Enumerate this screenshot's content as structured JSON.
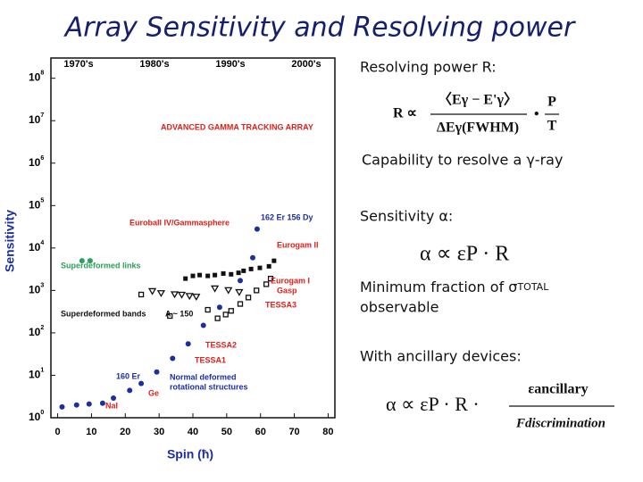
{
  "title": "Array Sensitivity and Resolving power",
  "chart_data": {
    "type": "scatter",
    "log_y": true,
    "y_label": "Sensitivity",
    "x_label": "Spin (ħ)",
    "era_labels": [
      "1970's",
      "1980's",
      "1990's",
      "2000's"
    ],
    "xlim": [
      -2,
      82
    ],
    "xticks": [
      0,
      10,
      20,
      30,
      40,
      50,
      60,
      70,
      80
    ],
    "ylim": [
      1,
      300000000
    ],
    "yticks": [
      {
        "value": 1,
        "label": "10",
        "exponent": "0"
      },
      {
        "value": 10,
        "label": "10",
        "exponent": "1"
      },
      {
        "value": 100,
        "label": "10",
        "exponent": "2"
      },
      {
        "value": 1000,
        "label": "10",
        "exponent": "3"
      },
      {
        "value": 10000,
        "label": "10",
        "exponent": "4"
      },
      {
        "value": 100000,
        "label": "10",
        "exponent": "5"
      },
      {
        "value": 1000000,
        "label": "10",
        "exponent": "6"
      },
      {
        "value": 10000000,
        "label": "10",
        "exponent": "7"
      },
      {
        "value": 100000000,
        "label": "10",
        "exponent": "8"
      }
    ],
    "series": [
      {
        "color": "#1c2fa0",
        "marker": "circle",
        "x": [
          1.3,
          5.6,
          9.3,
          13.3,
          16.5,
          21.3,
          24.7,
          29.3,
          34,
          38.6,
          43.1,
          47.9,
          54,
          57.7,
          59
        ],
        "values": [
          1.8,
          2,
          2.1,
          2.2,
          2.9,
          4.4,
          6.4,
          12,
          25,
          55,
          150,
          400,
          1700,
          5900,
          28000
        ]
      },
      {
        "color": "#2ca05a",
        "marker": "circle",
        "x": [
          7.2,
          9.6
        ],
        "values": [
          5000,
          5000
        ]
      },
      {
        "color": "#111111",
        "marker": "square",
        "x": [
          37.8,
          40,
          42,
          44.4,
          46.5,
          49,
          51.3,
          53.5,
          55,
          57.2,
          59.8,
          62.5,
          64
        ],
        "values": [
          1900,
          2200,
          2300,
          2200,
          2300,
          2500,
          2400,
          2600,
          2900,
          3200,
          3400,
          3700,
          5000
        ]
      },
      {
        "color": "#111111",
        "marker": "triangle",
        "x": [
          28,
          30.6,
          34.6,
          36.7,
          39,
          41,
          46.5,
          50.5,
          53.7
        ],
        "values": [
          950,
          850,
          800,
          780,
          730,
          700,
          1100,
          1000,
          900
        ]
      },
      {
        "color": "#111111",
        "marker": "open-square",
        "x": [
          24.7,
          33.2,
          44.4,
          47.3,
          49.7,
          51.3,
          54,
          56.4,
          58.8,
          61.7,
          63
        ],
        "values": [
          800,
          250,
          350,
          220,
          270,
          330,
          480,
          680,
          1000,
          1400,
          1900
        ]
      }
    ],
    "annotations": [
      {
        "text": "ADVANCED GAMMA TRACKING ARRAY",
        "color": "#e0201a"
      },
      {
        "text": "Euroball IV/Gammasphere",
        "color": "#e0201a"
      },
      {
        "text": "162 Er 156 Dy",
        "color": "#1c2fa0"
      },
      {
        "text": "Eurogam II",
        "color": "#e0201a"
      },
      {
        "text": "Superdeformed links",
        "color": "#2ca05a"
      },
      {
        "text": "Eurogam I",
        "color": "#e0201a"
      },
      {
        "text": "Gasp",
        "color": "#e0201a"
      },
      {
        "text": "TESSA3",
        "color": "#e0201a"
      },
      {
        "text": "Superdeformed bands",
        "color": "#111111"
      },
      {
        "text": "A ~ 150",
        "color": "#111111"
      },
      {
        "text": "TESSA2",
        "color": "#e0201a"
      },
      {
        "text": "TESSA1",
        "color": "#e0201a"
      },
      {
        "text": "160 Er",
        "color": "#1c2fa0"
      },
      {
        "text": "Normal deformed",
        "color": "#1c2fa0"
      },
      {
        "text": "rotational structures",
        "color": "#1c2fa0"
      },
      {
        "text": "Ge",
        "color": "#e0201a"
      },
      {
        "text": "NaI",
        "color": "#e0201a"
      }
    ]
  },
  "notes": {
    "resolving_power": "Resolving power R:",
    "formula_1": {
      "lhs": "R ∝",
      "numerator": "〈Eγ − E'γ〉",
      "denominator": "ΔEγ(FWHM)",
      "dot": "•",
      "top": "P",
      "bottom": "T"
    },
    "capability": "Capability to resolve a  γ-ray",
    "sensitivity": "Sensitivity  α:",
    "formula_2": "α ∝ εP · R",
    "minimum": "Minimum fraction of  σ",
    "minimum_sub": "TOTAL",
    "observable": "observable",
    "ancillary": "With ancillary devices:",
    "formula_3": {
      "lhs": "α ∝ εP · R ·",
      "numerator": "εancillary",
      "denominator": "Fdiscrimination"
    }
  }
}
